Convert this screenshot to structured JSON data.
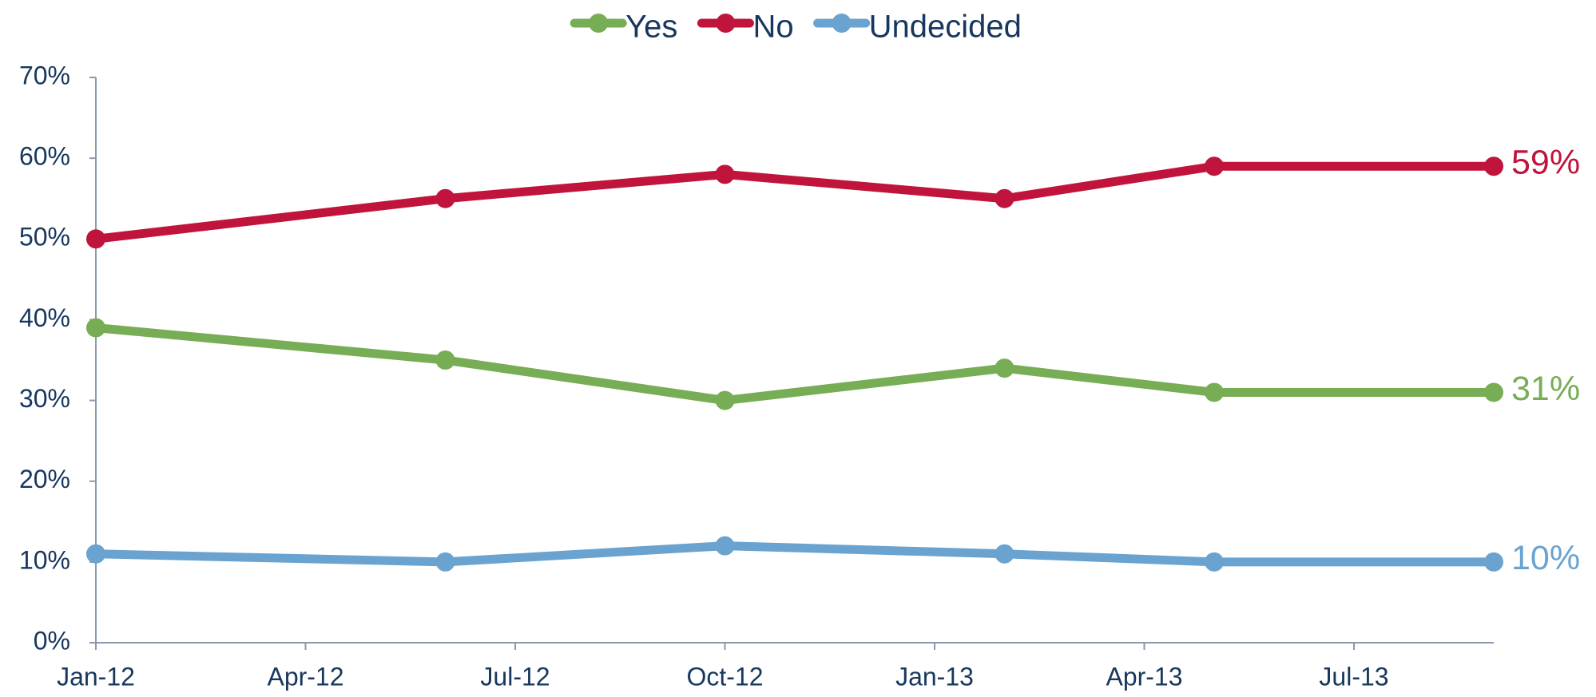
{
  "chart_data": {
    "type": "line",
    "x": [
      "2012-01",
      "2012-06",
      "2012-10",
      "2013-02",
      "2013-05",
      "2013-09"
    ],
    "series": [
      {
        "name": "Yes",
        "color": "#77ad55",
        "values": [
          39,
          35,
          30,
          34,
          31,
          31
        ],
        "value_labels": [
          null,
          null,
          null,
          null,
          null,
          "31%"
        ]
      },
      {
        "name": "No",
        "color": "#c0143c",
        "values": [
          50,
          55,
          58,
          55,
          59,
          59
        ],
        "value_labels": [
          null,
          null,
          null,
          null,
          null,
          "59%"
        ]
      },
      {
        "name": "Undecided",
        "color": "#6aa3d0",
        "values": [
          11,
          10,
          12,
          11,
          10,
          10
        ],
        "value_labels": [
          null,
          null,
          null,
          null,
          null,
          "10%"
        ]
      }
    ],
    "xlim": [
      "2012-01",
      "2013-09"
    ],
    "xticks": [
      {
        "value": "2012-01",
        "label": "Jan-12"
      },
      {
        "value": "2012-04",
        "label": "Apr-12"
      },
      {
        "value": "2012-07",
        "label": "Jul-12"
      },
      {
        "value": "2012-10",
        "label": "Oct-12"
      },
      {
        "value": "2013-01",
        "label": "Jan-13"
      },
      {
        "value": "2013-04",
        "label": "Apr-13"
      },
      {
        "value": "2013-07",
        "label": "Jul-13"
      }
    ],
    "ylim": [
      0,
      70
    ],
    "yticks": [
      {
        "value": 0,
        "label": "0%"
      },
      {
        "value": 10,
        "label": "10%"
      },
      {
        "value": 20,
        "label": "20%"
      },
      {
        "value": 30,
        "label": "30%"
      },
      {
        "value": 40,
        "label": "40%"
      },
      {
        "value": 50,
        "label": "50%"
      },
      {
        "value": 60,
        "label": "60%"
      },
      {
        "value": 70,
        "label": "70%"
      }
    ],
    "legend": "top",
    "grid": false
  }
}
